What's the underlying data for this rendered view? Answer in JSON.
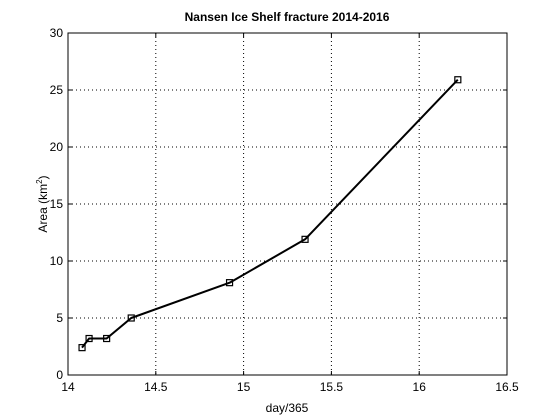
{
  "chart_data": {
    "type": "line",
    "title": "Nansen Ice Shelf fracture 2014-2016",
    "xlabel": "day/365",
    "ylabel": "Area (km",
    "ylabel_sup": "2",
    "ylabel_end": ")",
    "xlim": [
      14,
      16.5
    ],
    "ylim": [
      0,
      30
    ],
    "xticks": [
      14,
      14.5,
      15,
      15.5,
      16,
      16.5
    ],
    "xtick_labels": [
      "14",
      "14.5",
      "15",
      "15.5",
      "16",
      "16.5"
    ],
    "yticks": [
      0,
      5,
      10,
      15,
      20,
      25,
      30
    ],
    "ytick_labels": [
      "0",
      "5",
      "10",
      "15",
      "20",
      "25",
      "30"
    ],
    "grid": true,
    "marker": "square",
    "line_color": "#000000",
    "series": [
      {
        "x": [
          14.08,
          14.12,
          14.22,
          14.36,
          14.92,
          15.35,
          16.22
        ],
        "y": [
          2.4,
          3.2,
          3.2,
          5.0,
          8.1,
          11.9,
          25.9
        ]
      }
    ]
  }
}
